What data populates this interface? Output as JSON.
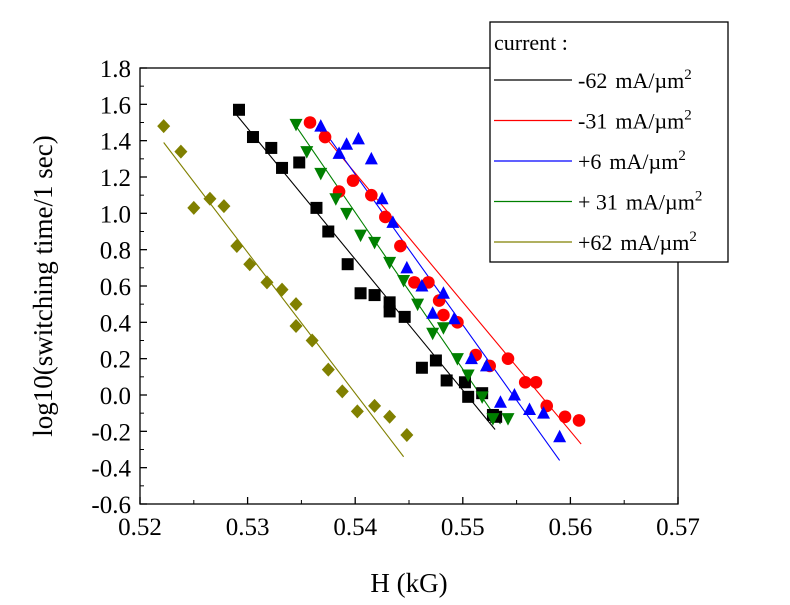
{
  "chart_data": {
    "type": "scatter",
    "title": "",
    "xlabel": "H (kG)",
    "ylabel": "log10(switching time/1 sec)",
    "xlim": [
      0.52,
      0.57
    ],
    "ylim": [
      -0.6,
      1.8
    ],
    "xticks": [
      0.52,
      0.53,
      0.54,
      0.55,
      0.56,
      0.57
    ],
    "yticks": [
      -0.6,
      -0.4,
      -0.2,
      0.0,
      0.2,
      0.4,
      0.6,
      0.8,
      1.0,
      1.2,
      1.4,
      1.6,
      1.8
    ],
    "xtick_labels": [
      "0.52",
      "0.53",
      "0.54",
      "0.55",
      "0.56",
      "0.57"
    ],
    "ytick_labels": [
      "-0.6",
      "-0.4",
      "-0.2",
      "0.0",
      "0.2",
      "0.4",
      "0.6",
      "0.8",
      "1.0",
      "1.2",
      "1.4",
      "1.6",
      "1.8"
    ],
    "grid": false,
    "legend": {
      "title": "current :",
      "placement": "top-right",
      "unit_prefix": "mA/µm",
      "unit_exp": "2"
    },
    "series": [
      {
        "name": "-62",
        "color": "#000000",
        "marker": "square",
        "x": [
          0.5292,
          0.5305,
          0.5322,
          0.5332,
          0.5348,
          0.5364,
          0.5375,
          0.5393,
          0.5405,
          0.5418,
          0.5432,
          0.5432,
          0.5446,
          0.5462,
          0.5475,
          0.5485,
          0.5502,
          0.5505,
          0.5518,
          0.5528,
          0.5531
        ],
        "y": [
          1.57,
          1.42,
          1.36,
          1.25,
          1.28,
          1.03,
          0.9,
          0.72,
          0.56,
          0.55,
          0.51,
          0.46,
          0.43,
          0.15,
          0.19,
          0.08,
          0.07,
          -0.01,
          0.01,
          -0.11,
          -0.12
        ],
        "fit": {
          "x": [
            0.529,
            0.553
          ],
          "y": [
            1.54,
            -0.19
          ]
        }
      },
      {
        "name": "-31",
        "color": "#ff0000",
        "marker": "circle",
        "x": [
          0.5358,
          0.5372,
          0.5385,
          0.5398,
          0.5415,
          0.5428,
          0.5442,
          0.5455,
          0.5468,
          0.5478,
          0.5482,
          0.5495,
          0.5512,
          0.5525,
          0.5542,
          0.5558,
          0.5568,
          0.5578,
          0.5595,
          0.5608
        ],
        "y": [
          1.5,
          1.42,
          1.12,
          1.18,
          1.1,
          0.98,
          0.82,
          0.62,
          0.62,
          0.52,
          0.44,
          0.4,
          0.22,
          0.16,
          0.2,
          0.07,
          0.07,
          -0.06,
          -0.12,
          -0.14
        ],
        "fit": {
          "x": [
            0.5365,
            0.561
          ],
          "y": [
            1.47,
            -0.27
          ]
        }
      },
      {
        "name": "+6",
        "color": "#0000ff",
        "marker": "triangle-up",
        "x": [
          0.5368,
          0.5385,
          0.5403,
          0.5392,
          0.5415,
          0.5425,
          0.5435,
          0.5448,
          0.5462,
          0.5472,
          0.5482,
          0.5492,
          0.5508,
          0.5522,
          0.5535,
          0.5548,
          0.5562,
          0.5575,
          0.559
        ],
        "y": [
          1.48,
          1.33,
          1.41,
          1.38,
          1.3,
          1.08,
          0.95,
          0.7,
          0.6,
          0.45,
          0.56,
          0.42,
          0.2,
          0.16,
          -0.04,
          0.0,
          -0.08,
          -0.1,
          -0.23
        ],
        "fit": {
          "x": [
            0.5368,
            0.559
          ],
          "y": [
            1.48,
            -0.36
          ]
        }
      },
      {
        "name": "+ 31",
        "color": "#008000",
        "marker": "triangle-down",
        "x": [
          0.5345,
          0.5355,
          0.5368,
          0.5382,
          0.5392,
          0.5405,
          0.5418,
          0.5432,
          0.5445,
          0.5458,
          0.5472,
          0.5482,
          0.5495,
          0.5505,
          0.5518,
          0.5528,
          0.5542
        ],
        "y": [
          1.49,
          1.34,
          1.22,
          1.08,
          1.0,
          0.88,
          0.84,
          0.73,
          0.63,
          0.5,
          0.34,
          0.37,
          0.2,
          0.11,
          -0.01,
          -0.13,
          -0.13
        ],
        "fit": {
          "x": [
            0.5345,
            0.5535
          ],
          "y": [
            1.48,
            -0.16
          ]
        }
      },
      {
        "name": "+62",
        "color": "#808000",
        "marker": "diamond",
        "x": [
          0.5222,
          0.5238,
          0.525,
          0.5265,
          0.5278,
          0.529,
          0.5302,
          0.5318,
          0.5332,
          0.5345,
          0.5345,
          0.536,
          0.5375,
          0.5388,
          0.5402,
          0.5418,
          0.5432,
          0.5448
        ],
        "y": [
          1.48,
          1.34,
          1.03,
          1.08,
          1.04,
          0.82,
          0.72,
          0.62,
          0.58,
          0.5,
          0.38,
          0.3,
          0.14,
          0.02,
          -0.09,
          -0.06,
          -0.12,
          -0.22
        ],
        "fit": {
          "x": [
            0.5222,
            0.5445
          ],
          "y": [
            1.39,
            -0.34
          ]
        }
      }
    ]
  }
}
